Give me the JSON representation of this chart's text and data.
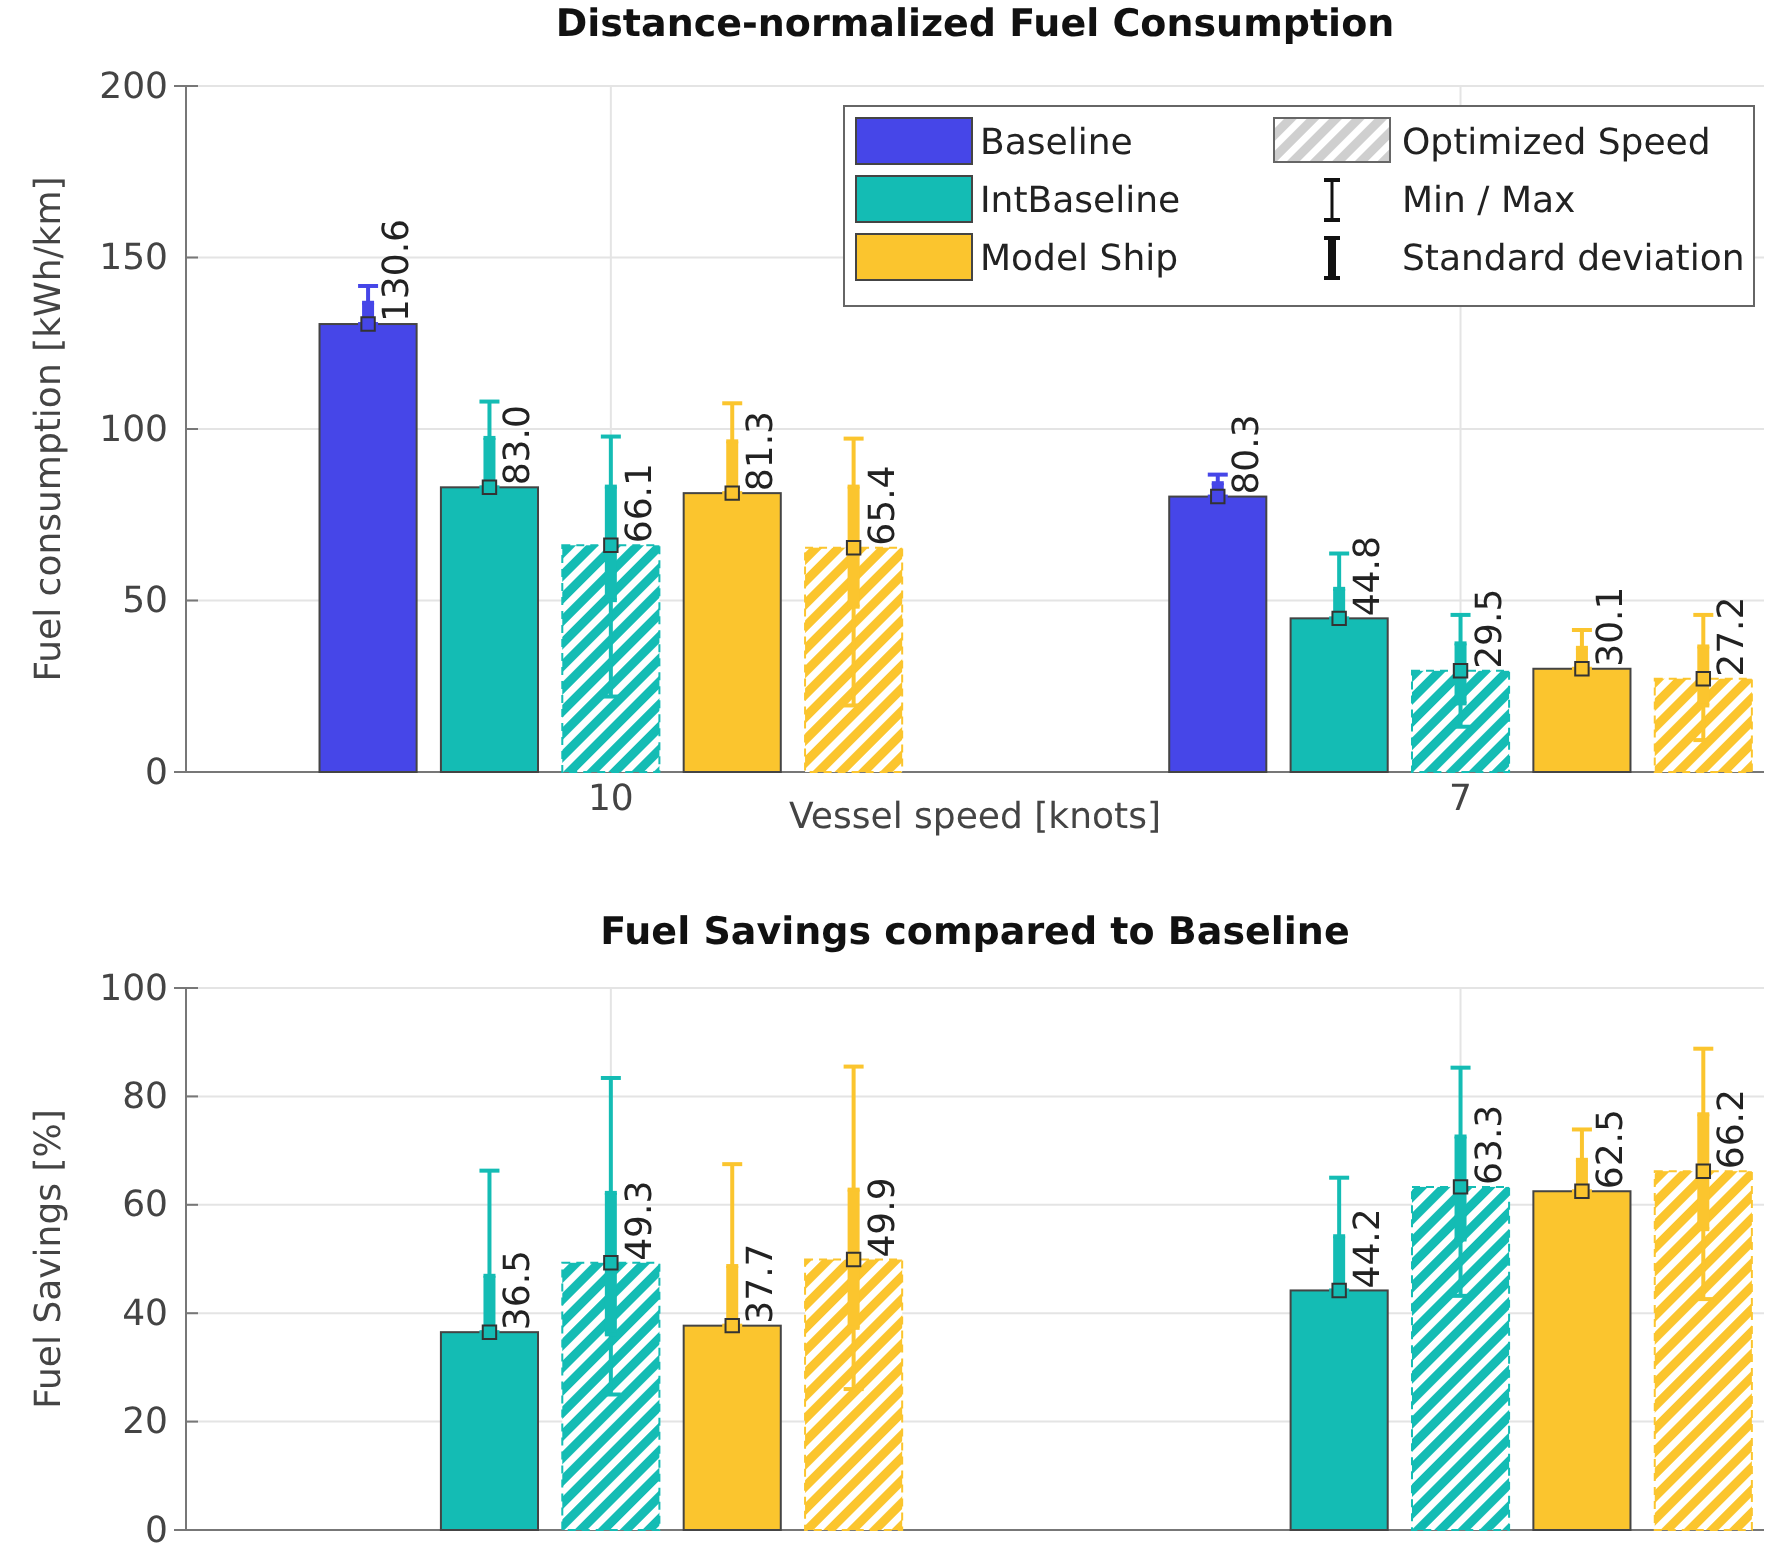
{
  "chart_data": [
    {
      "type": "bar",
      "stacked": true,
      "title": "Distance-normalized Fuel Consumption",
      "xlabel": "Vessel speed [knots]",
      "ylabel": "Fuel consumption [kWh/km]",
      "categories": [
        null,
        null,
        null,
        "10",
        null,
        null,
        null,
        null,
        null,
        null,
        "7",
        null,
        null
      ],
      "ylim": [
        0,
        200
      ],
      "yticks": [
        0,
        50,
        100,
        150,
        200
      ],
      "grid": true,
      "legend": "top right",
      "marker": "square",
      "annotations": [
        "Optimized Speed",
        "Min / Max",
        "Standard deviation"
      ],
      "series": [
        {
          "name": "Baseline",
          "color": "#4646e8",
          "values": [
            null,
            130.6,
            null,
            null,
            null,
            null,
            null,
            null,
            80.3,
            null,
            null,
            null,
            null
          ],
          "value_labels": [
            null,
            "130.6",
            null,
            null,
            null,
            null,
            null,
            null,
            "80.3",
            null,
            null,
            null,
            null
          ],
          "errors": [
            null,
            [
              130.6,
              141.7
            ],
            null,
            null,
            null,
            null,
            null,
            null,
            [
              80.3,
              86.7
            ],
            null,
            null,
            null,
            null
          ]
        },
        {
          "name": "IntBaseline",
          "color": "#14bcb4",
          "values": [
            null,
            null,
            83.0,
            null,
            null,
            null,
            null,
            null,
            null,
            44.8,
            null,
            null,
            null
          ],
          "value_labels": [
            null,
            null,
            "83.0",
            null,
            null,
            null,
            null,
            null,
            null,
            "44.8",
            null,
            null,
            null
          ],
          "errors": [
            null,
            null,
            [
              83.0,
              108
            ],
            null,
            null,
            null,
            null,
            null,
            null,
            [
              44.8,
              63.7
            ],
            null,
            null,
            null
          ]
        },
        {
          "color": "#14bcb4",
          "line_style": "dashed",
          "values": [
            null,
            null,
            null,
            66.1,
            null,
            null,
            null,
            null,
            null,
            null,
            29.5,
            null,
            null
          ],
          "value_labels": [
            null,
            null,
            null,
            "66.1",
            null,
            null,
            null,
            null,
            null,
            null,
            "29.5",
            null,
            null
          ],
          "errors": [
            null,
            null,
            null,
            [
              22,
              97.8
            ],
            null,
            null,
            null,
            null,
            null,
            null,
            [
              13.2,
              45.8
            ],
            null,
            null
          ]
        },
        {
          "name": "Model Ship",
          "color": "#fbc52e",
          "values": [
            null,
            null,
            null,
            null,
            81.3,
            null,
            null,
            null,
            null,
            null,
            null,
            30.1,
            null
          ],
          "value_labels": [
            null,
            null,
            null,
            null,
            "81.3",
            null,
            null,
            null,
            null,
            null,
            null,
            "30.1",
            null
          ],
          "errors": [
            null,
            null,
            null,
            null,
            [
              81.3,
              107.5
            ],
            null,
            null,
            null,
            null,
            null,
            null,
            [
              30.1,
              41.4
            ],
            null
          ]
        },
        {
          "color": "#fbc52e",
          "line_style": "dashed",
          "values": [
            null,
            null,
            null,
            null,
            null,
            65.4,
            null,
            null,
            null,
            null,
            null,
            null,
            27.2
          ],
          "value_labels": [
            null,
            null,
            null,
            null,
            null,
            "65.4",
            null,
            null,
            null,
            null,
            null,
            null,
            "27.2"
          ],
          "errors": [
            null,
            null,
            null,
            null,
            null,
            [
              19.4,
              97.2
            ],
            null,
            null,
            null,
            null,
            null,
            null,
            [
              9.3,
              45.8
            ]
          ]
        },
        {
          "type": "scatter",
          "color": "#4646e8",
          "values": [
            null,
            130.6,
            null,
            null,
            null,
            null,
            null,
            null,
            80.3,
            null,
            null,
            null,
            null
          ],
          "errors": [
            null,
            [
              130.6,
              136.8
            ],
            null,
            null,
            null,
            null,
            null,
            null,
            [
              80.3,
              84.2
            ],
            null,
            null,
            null,
            null
          ]
        },
        {
          "type": "scatter",
          "color": "#14bcb4",
          "values": [
            null,
            null,
            83.0,
            null,
            null,
            null,
            null,
            null,
            null,
            44.8,
            null,
            null,
            null
          ],
          "errors": [
            null,
            null,
            [
              83.0,
              97.4
            ],
            null,
            null,
            null,
            null,
            null,
            null,
            [
              44.8,
              53.4
            ],
            null,
            null,
            null
          ]
        },
        {
          "type": "scatter",
          "color": "#14bcb4",
          "values": [
            null,
            null,
            null,
            66.1,
            null,
            null,
            null,
            null,
            null,
            null,
            29.5,
            null,
            null
          ],
          "errors": [
            null,
            null,
            null,
            [
              50.1,
              83.2
            ],
            null,
            null,
            null,
            null,
            null,
            null,
            [
              20,
              37.5
            ],
            null,
            null
          ]
        },
        {
          "type": "scatter",
          "color": "#fbc52e",
          "values": [
            null,
            null,
            null,
            null,
            81.3,
            null,
            null,
            null,
            null,
            null,
            null,
            30.1,
            null
          ],
          "errors": [
            null,
            null,
            null,
            null,
            [
              81.3,
              96.4
            ],
            null,
            null,
            null,
            null,
            null,
            null,
            [
              30.1,
              36.2
            ],
            null
          ]
        },
        {
          "type": "scatter",
          "color": "#fbc52e",
          "values": [
            null,
            null,
            null,
            null,
            null,
            65.4,
            null,
            null,
            null,
            null,
            null,
            null,
            27.2
          ],
          "errors": [
            null,
            null,
            null,
            null,
            null,
            [
              48.2,
              83.2
            ],
            null,
            null,
            null,
            null,
            null,
            null,
            [
              19.4,
              36.6
            ]
          ]
        }
      ]
    },
    {
      "type": "bar",
      "stacked": true,
      "title": "Fuel Savings compared to Baseline",
      "ylabel": "Fuel Savings [%]",
      "categories": [
        null,
        null,
        null,
        "10",
        null,
        null,
        null,
        null,
        null,
        null,
        "7",
        null,
        null
      ],
      "tick_labels": "y",
      "ylim": [
        0,
        100
      ],
      "yticks": [
        0,
        20,
        40,
        60,
        80,
        100
      ],
      "grid": true,
      "marker": "square",
      "series": [
        {
          "color": "#14bcb4",
          "values": [
            null,
            null,
            36.5,
            null,
            null,
            null,
            null,
            null,
            null,
            44.2,
            null,
            null,
            null
          ],
          "value_labels": [
            null,
            null,
            "36.5",
            null,
            null,
            null,
            null,
            null,
            null,
            "44.2",
            null,
            null,
            null
          ],
          "errors": [
            null,
            null,
            [
              36.5,
              66.3
            ],
            null,
            null,
            null,
            null,
            null,
            null,
            [
              44.2,
              65
            ],
            null,
            null,
            null
          ]
        },
        {
          "color": "#14bcb4",
          "line_style": "dashed",
          "values": [
            null,
            null,
            null,
            49.3,
            null,
            null,
            null,
            null,
            null,
            null,
            63.3,
            null,
            null
          ],
          "value_labels": [
            null,
            null,
            null,
            "49.3",
            null,
            null,
            null,
            null,
            null,
            null,
            "63.3",
            null,
            null
          ],
          "errors": [
            null,
            null,
            null,
            [
              25,
              83.4
            ],
            null,
            null,
            null,
            null,
            null,
            null,
            [
              43.2,
              85.3
            ],
            null,
            null
          ]
        },
        {
          "color": "#fbc52e",
          "values": [
            null,
            null,
            null,
            null,
            37.7,
            null,
            null,
            null,
            null,
            null,
            null,
            62.5,
            null
          ],
          "value_labels": [
            null,
            null,
            null,
            null,
            "37.7",
            null,
            null,
            null,
            null,
            null,
            null,
            "62.5",
            null
          ],
          "errors": [
            null,
            null,
            null,
            null,
            [
              37.7,
              67.5
            ],
            null,
            null,
            null,
            null,
            null,
            null,
            [
              62.5,
              73.9
            ],
            null
          ]
        },
        {
          "color": "#fbc52e",
          "line_style": "dashed",
          "values": [
            null,
            null,
            null,
            null,
            null,
            49.9,
            null,
            null,
            null,
            null,
            null,
            null,
            66.2
          ],
          "value_labels": [
            null,
            null,
            null,
            null,
            null,
            "49.9",
            null,
            null,
            null,
            null,
            null,
            null,
            "66.2"
          ],
          "errors": [
            null,
            null,
            null,
            null,
            null,
            [
              26,
              85.5
            ],
            null,
            null,
            null,
            null,
            null,
            null,
            [
              42.6,
              88.8
            ]
          ]
        },
        {
          "type": "scatter",
          "color": "#14bcb4",
          "values": [
            null,
            null,
            36.5,
            null,
            null,
            null,
            null,
            null,
            null,
            44.2,
            null,
            null,
            null
          ],
          "errors": [
            null,
            null,
            [
              36.5,
              46.9
            ],
            null,
            null,
            null,
            null,
            null,
            null,
            [
              44.2,
              54.2
            ],
            null,
            null,
            null
          ]
        },
        {
          "type": "scatter",
          "color": "#14bcb4",
          "values": [
            null,
            null,
            null,
            49.3,
            null,
            null,
            null,
            null,
            null,
            null,
            63.3,
            null,
            null
          ],
          "errors": [
            null,
            null,
            null,
            [
              36.1,
              62.2
            ],
            null,
            null,
            null,
            null,
            null,
            null,
            [
              53.6,
              72.6
            ],
            null,
            null
          ]
        },
        {
          "type": "scatter",
          "color": "#fbc52e",
          "values": [
            null,
            null,
            null,
            null,
            37.7,
            null,
            null,
            null,
            null,
            null,
            null,
            62.5,
            null
          ],
          "errors": [
            null,
            null,
            null,
            null,
            [
              37.7,
              48.7
            ],
            null,
            null,
            null,
            null,
            null,
            null,
            [
              62.5,
              68.3
            ],
            null
          ]
        },
        {
          "type": "scatter",
          "color": "#fbc52e",
          "values": [
            null,
            null,
            null,
            null,
            null,
            49.9,
            null,
            null,
            null,
            null,
            null,
            null,
            66.2
          ],
          "errors": [
            null,
            null,
            null,
            null,
            null,
            [
              37.3,
              62.8
            ],
            null,
            null,
            null,
            null,
            null,
            null,
            [
              55.5,
              76.7
            ]
          ]
        }
      ]
    }
  ]
}
